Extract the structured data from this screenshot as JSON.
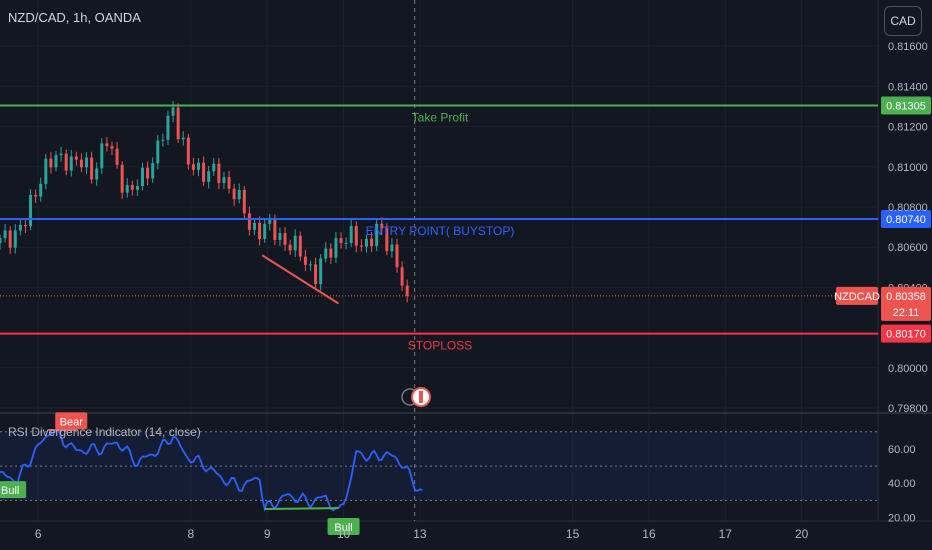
{
  "header": {
    "symbol": "NZD/CAD, 1h, OANDA",
    "currency_button": "CAD"
  },
  "indicator": {
    "title": "RSI Divergence Indicator (14, close)"
  },
  "colors": {
    "up": "#26a69a",
    "down": "#ef5350",
    "take_profit": "#4caf50",
    "entry": "#2962ff",
    "stoploss": "#f23645",
    "rsi": "#2962ff",
    "bg": "#131722"
  },
  "chart_data": [
    {
      "type": "candlestick",
      "title": "NZD/CAD, 1h, OANDA",
      "y_ticks": [
        "0.81600",
        "0.81400",
        "0.81200",
        "0.81000",
        "0.80800",
        "0.80600",
        "0.80400",
        "0.80000",
        "0.79800"
      ],
      "ylim": [
        0.798,
        0.8178
      ],
      "x_ticks": [
        {
          "label": "6",
          "x": 1.5
        },
        {
          "label": "8",
          "x": 7.5
        },
        {
          "label": "9",
          "x": 10.5
        },
        {
          "label": "10",
          "x": 13.5
        },
        {
          "label": "13",
          "x": 16.5
        },
        {
          "label": "15",
          "x": 22.5
        },
        {
          "label": "16",
          "x": 25.5
        },
        {
          "label": "17",
          "x": 28.5
        },
        {
          "label": "20",
          "x": 31.5
        }
      ],
      "xlim": [
        0,
        34.5
      ],
      "last_bar_x": 15.9,
      "closes": [
        0.8062,
        0.8075,
        0.8098,
        0.8105,
        0.8108,
        0.8102,
        0.8097,
        0.8112,
        0.8106,
        0.81,
        0.809,
        0.8105,
        0.8115,
        0.8128,
        0.8108,
        0.81,
        0.809,
        0.8077,
        0.8071,
        0.8065,
        0.8062,
        0.8069,
        0.8063,
        0.8066,
        0.806,
        0.8048,
        0.8055,
        0.8066,
        0.8065,
        0.8069,
        0.8064,
        0.806,
        0.8048,
        0.80358
      ],
      "anchors": [
        [
          0,
          0.8062
        ],
        [
          1,
          0.8072
        ],
        [
          1.7,
          0.81
        ],
        [
          2.6,
          0.8105
        ],
        [
          3.6,
          0.8098
        ],
        [
          4.2,
          0.8112
        ],
        [
          5.1,
          0.8085
        ],
        [
          6.2,
          0.8108
        ],
        [
          6.8,
          0.813
        ],
        [
          7.4,
          0.81
        ],
        [
          8.2,
          0.8098
        ],
        [
          9.2,
          0.8089
        ],
        [
          9.8,
          0.807
        ],
        [
          10.4,
          0.807
        ],
        [
          11.4,
          0.8062
        ],
        [
          12.4,
          0.8047
        ],
        [
          13.3,
          0.8065
        ],
        [
          14.3,
          0.8062
        ],
        [
          14.9,
          0.8068
        ],
        [
          15.5,
          0.8058
        ],
        [
          15.9,
          0.80358
        ]
      ],
      "levels": [
        {
          "name": "Take Profit",
          "value": 0.81305,
          "label": "0.81305",
          "color": "#4caf50"
        },
        {
          "name": "ENTRY POINT( BUYSTOP)",
          "value": 0.8074,
          "label": "0.80740",
          "color": "#2962ff"
        },
        {
          "name": "STOPLOSS",
          "value": 0.8017,
          "label": "0.80170",
          "color": "#f23645"
        }
      ],
      "last_price": {
        "symbol": "NZDCAD",
        "value": "0.80358",
        "countdown": "22:11"
      },
      "annotations": [
        {
          "type": "divergence-line",
          "from": [
            10.3,
            0.8056
          ],
          "to": [
            13.3,
            0.8032
          ]
        }
      ]
    },
    {
      "type": "line",
      "title": "RSI Divergence Indicator (14, close)",
      "y_ticks": [
        "60.00",
        "40.00",
        "20.00"
      ],
      "ylim": [
        18,
        78
      ],
      "band": [
        30,
        70
      ],
      "midline": 50,
      "anchors": [
        [
          0,
          45
        ],
        [
          0.7,
          42
        ],
        [
          1.3,
          57
        ],
        [
          2.0,
          71
        ],
        [
          3.0,
          59
        ],
        [
          4.0,
          60
        ],
        [
          4.6,
          64
        ],
        [
          5.4,
          52
        ],
        [
          6.3,
          60
        ],
        [
          6.8,
          68
        ],
        [
          7.3,
          56
        ],
        [
          8.0,
          51
        ],
        [
          8.8,
          42
        ],
        [
          9.5,
          38
        ],
        [
          10.2,
          44
        ],
        [
          10.4,
          25
        ],
        [
          11.3,
          33
        ],
        [
          12.2,
          29
        ],
        [
          12.8,
          32
        ],
        [
          13.3,
          22
        ],
        [
          13.8,
          42
        ],
        [
          14.0,
          58
        ],
        [
          14.6,
          55
        ],
        [
          15.2,
          57
        ],
        [
          15.8,
          52
        ],
        [
          16.3,
          39
        ],
        [
          16.6,
          35
        ]
      ],
      "labels": [
        {
          "text": "Bull",
          "x": 0.4,
          "y": 36,
          "kind": "bull"
        },
        {
          "text": "Bear",
          "x": 2.8,
          "y": 76,
          "kind": "bear"
        },
        {
          "text": "Bull",
          "x": 13.5,
          "y": 14.5,
          "kind": "bull"
        }
      ],
      "segments": [
        {
          "from": [
            1.9,
            71
          ],
          "to": [
            3.0,
            71
          ],
          "color": "#ef5350"
        },
        {
          "from": [
            10.4,
            25
          ],
          "to": [
            13.3,
            25.5
          ],
          "color": "#4caf50"
        }
      ]
    }
  ]
}
